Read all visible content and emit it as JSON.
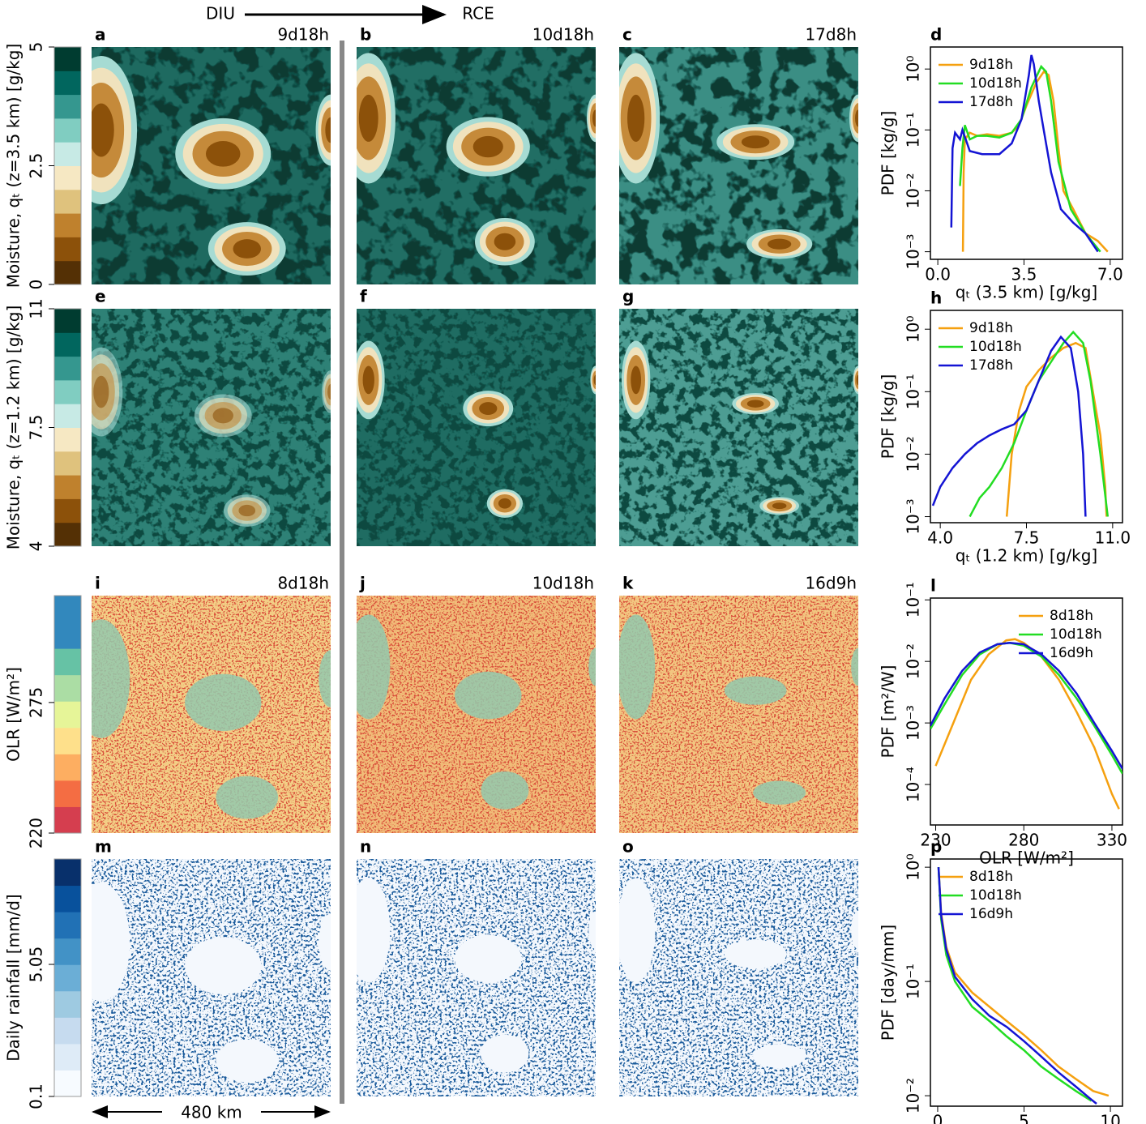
{
  "header": {
    "left": "DIU",
    "right": "RCE"
  },
  "scale_bar": "480 km",
  "rows": [
    {
      "colorbar": {
        "label": "Moisture, qₜ (z=3.5 km) [g/kg]",
        "lim": [
          0,
          5
        ],
        "ticks": [
          0,
          2.5,
          5
        ],
        "colors": [
          "#543005",
          "#8c510a",
          "#bf812d",
          "#dfc27d",
          "#f6e8c3",
          "#c7eae5",
          "#80cdc1",
          "#35978f",
          "#01665e",
          "#003c30"
        ]
      },
      "panels": [
        {
          "letter": "a",
          "time": "9d18h"
        },
        {
          "letter": "b",
          "time": "10d18h"
        },
        {
          "letter": "c",
          "time": "17d8h"
        }
      ]
    },
    {
      "colorbar": {
        "label": "Moisture, qₜ (z=1.2 km) [g/kg]",
        "lim": [
          4,
          11
        ],
        "ticks": [
          4,
          7.5,
          11
        ],
        "colors": [
          "#543005",
          "#8c510a",
          "#bf812d",
          "#dfc27d",
          "#f6e8c3",
          "#c7eae5",
          "#80cdc1",
          "#35978f",
          "#01665e",
          "#003c30"
        ]
      },
      "panels": [
        {
          "letter": "e"
        },
        {
          "letter": "f"
        },
        {
          "letter": "g"
        }
      ]
    },
    {
      "colorbar": {
        "label": "OLR [W/m²]",
        "lim": [
          220,
          320
        ],
        "ticks": [
          220,
          275
        ],
        "colors": [
          "#d53e4f",
          "#f46d43",
          "#fdae61",
          "#fee08b",
          "#e6f598",
          "#abdda4",
          "#66c2a5",
          "#3288bd",
          "#3288bd"
        ]
      },
      "panels": [
        {
          "letter": "i",
          "time": "8d18h"
        },
        {
          "letter": "j",
          "time": "10d18h"
        },
        {
          "letter": "k",
          "time": "16d9h"
        }
      ]
    },
    {
      "colorbar": {
        "label": "Daily rainfall [mm/d]",
        "lim": [
          0.1,
          9
        ],
        "ticks": [
          0.1,
          5.05
        ],
        "colors": [
          "#f7fbff",
          "#deebf7",
          "#c6dbef",
          "#9ecae1",
          "#6baed6",
          "#4292c6",
          "#2171b5",
          "#08519c",
          "#08306b"
        ]
      },
      "panels": [
        {
          "letter": "m"
        },
        {
          "letter": "n"
        },
        {
          "letter": "o"
        }
      ]
    }
  ],
  "chart_data": [
    {
      "type": "line",
      "title": "d",
      "xlabel": "qₜ (3.5 km) [g/kg]",
      "ylabel": "PDF [kg/g]",
      "log_y": true,
      "legend": "upper left",
      "xlim": [
        -0.3,
        7.5
      ],
      "ylim": [
        0.00075,
        2.3
      ],
      "xticks": [
        {
          "value": 0,
          "label": "0.0"
        },
        3.5,
        {
          "value": 7,
          "label": "7.0"
        }
      ],
      "yticks": [
        {
          "value": 0.001,
          "label": "10⁻³"
        },
        {
          "value": 0.01,
          "label": "10⁻²"
        },
        {
          "value": 0.1,
          "label": "10⁻¹"
        },
        {
          "value": 1,
          "label": "10⁰"
        }
      ],
      "series": [
        {
          "name": "9d18h",
          "color": "#f5a00f",
          "x": [
            1.02,
            1.05,
            1.1,
            1.3,
            1.6,
            2.0,
            2.5,
            3.0,
            3.3,
            3.6,
            4.0,
            4.3,
            4.5,
            4.7,
            4.9,
            5.1,
            5.5,
            6.0,
            6.5,
            6.9
          ],
          "values": [
            0.001,
            0.02,
            0.07,
            0.09,
            0.08,
            0.085,
            0.08,
            0.09,
            0.12,
            0.25,
            0.6,
            0.9,
            0.8,
            0.3,
            0.05,
            0.01,
            0.005,
            0.002,
            0.0015,
            0.001
          ]
        },
        {
          "name": "10d18h",
          "color": "#22dd22",
          "x": [
            0.9,
            1.0,
            1.1,
            1.3,
            1.6,
            2.0,
            2.5,
            3.0,
            3.4,
            3.8,
            4.2,
            4.4,
            4.6,
            4.9,
            5.4,
            6.0,
            6.6
          ],
          "values": [
            0.012,
            0.05,
            0.12,
            0.07,
            0.08,
            0.08,
            0.075,
            0.09,
            0.15,
            0.5,
            1.1,
            0.9,
            0.3,
            0.03,
            0.005,
            0.002,
            0.001
          ]
        },
        {
          "name": "17d8h",
          "color": "#1414d4",
          "x": [
            0.55,
            0.6,
            0.7,
            0.9,
            1.0,
            1.3,
            1.8,
            2.5,
            3.0,
            3.4,
            3.7,
            3.8,
            3.9,
            4.1,
            4.3,
            4.6,
            5.0,
            5.5,
            6.0,
            6.5
          ],
          "values": [
            0.0025,
            0.05,
            0.09,
            0.07,
            0.1,
            0.045,
            0.04,
            0.04,
            0.06,
            0.15,
            0.8,
            1.7,
            1.2,
            0.3,
            0.1,
            0.02,
            0.005,
            0.003,
            0.002,
            0.001
          ]
        }
      ]
    },
    {
      "type": "line",
      "title": "h",
      "xlabel": "qₜ (1.2 km) [g/kg]",
      "ylabel": "PDF [kg/g]",
      "log_y": true,
      "legend": "upper left",
      "xlim": [
        3.6,
        11.4
      ],
      "ylim": [
        0.0008,
        2.0
      ],
      "xticks": [
        {
          "value": 4,
          "label": "4.0"
        },
        7.5,
        {
          "value": 11,
          "label": "11.0"
        }
      ],
      "yticks": [
        {
          "value": 0.001,
          "label": "10⁻³"
        },
        {
          "value": 0.01,
          "label": "10⁻²"
        },
        {
          "value": 0.1,
          "label": "10⁻¹"
        },
        {
          "value": 1,
          "label": "10⁰"
        }
      ],
      "series": [
        {
          "name": "9d18h",
          "color": "#f5a00f",
          "x": [
            6.7,
            6.9,
            7.2,
            7.5,
            8.0,
            8.5,
            9.0,
            9.5,
            9.9,
            10.2,
            10.5,
            10.7,
            10.75
          ],
          "values": [
            0.001,
            0.01,
            0.05,
            0.12,
            0.22,
            0.35,
            0.5,
            0.6,
            0.5,
            0.1,
            0.02,
            0.003,
            0.001
          ]
        },
        {
          "name": "10d18h",
          "color": "#22dd22",
          "x": [
            5.2,
            5.6,
            6.0,
            6.5,
            7.0,
            7.5,
            8.0,
            8.5,
            9.0,
            9.4,
            9.8,
            10.1,
            10.5,
            10.8
          ],
          "values": [
            0.001,
            0.002,
            0.003,
            0.006,
            0.015,
            0.05,
            0.15,
            0.3,
            0.6,
            0.9,
            0.6,
            0.15,
            0.01,
            0.001
          ]
        },
        {
          "name": "17d8h",
          "color": "#1414d4",
          "x": [
            3.7,
            4.0,
            4.5,
            5.0,
            5.5,
            6.0,
            6.5,
            7.0,
            7.5,
            8.0,
            8.5,
            8.9,
            9.3,
            9.6,
            9.8,
            9.9
          ],
          "values": [
            0.0015,
            0.003,
            0.006,
            0.01,
            0.015,
            0.02,
            0.025,
            0.03,
            0.05,
            0.15,
            0.45,
            0.75,
            0.5,
            0.1,
            0.01,
            0.001
          ]
        }
      ]
    },
    {
      "type": "line",
      "title": "l",
      "xlabel": "OLR [W/m²]",
      "ylabel": "PDF [m²/W]",
      "log_y": true,
      "legend": "upper right",
      "xlim": [
        227,
        336
      ],
      "ylim": [
        2.2e-05,
        0.107
      ],
      "xticks": [
        230,
        280,
        330
      ],
      "yticks": [
        {
          "value": 0.0001,
          "label": "10⁻⁴"
        },
        {
          "value": 0.001,
          "label": "10⁻³"
        },
        {
          "value": 0.01,
          "label": "10⁻²"
        },
        {
          "value": 0.1,
          "label": "10⁻¹"
        }
      ],
      "series": [
        {
          "name": "8d18h",
          "color": "#f5a00f",
          "x": [
            230,
            240,
            250,
            260,
            270,
            275,
            280,
            290,
            300,
            310,
            320,
            330,
            334
          ],
          "values": [
            0.0002,
            0.001,
            0.005,
            0.013,
            0.022,
            0.023,
            0.02,
            0.012,
            0.005,
            0.0015,
            0.0004,
            7e-05,
            4e-05
          ]
        },
        {
          "name": "10d18h",
          "color": "#22dd22",
          "x": [
            227,
            235,
            245,
            255,
            265,
            272,
            280,
            290,
            300,
            310,
            320,
            330,
            336
          ],
          "values": [
            0.0008,
            0.002,
            0.006,
            0.013,
            0.019,
            0.02,
            0.018,
            0.012,
            0.006,
            0.0025,
            0.0009,
            0.0003,
            0.00015
          ]
        },
        {
          "name": "16d9h",
          "color": "#1414d4",
          "x": [
            227,
            235,
            245,
            255,
            265,
            272,
            280,
            290,
            300,
            310,
            320,
            330,
            336
          ],
          "values": [
            0.0009,
            0.0025,
            0.007,
            0.014,
            0.019,
            0.02,
            0.019,
            0.013,
            0.007,
            0.003,
            0.001,
            0.00035,
            0.00018
          ]
        }
      ]
    },
    {
      "type": "line",
      "title": "p",
      "xlabel": "Daily rainfall [mm/d]",
      "ylabel": "PDF [day/mm]",
      "log_y": true,
      "legend": "upper left",
      "xlim": [
        -0.42,
        10.7
      ],
      "ylim": [
        0.0081,
        1.18
      ],
      "xticks": [
        0,
        5,
        10
      ],
      "yticks": [
        {
          "value": 0.01,
          "label": "10⁻²"
        },
        {
          "value": 0.1,
          "label": "10⁻¹"
        },
        {
          "value": 1,
          "label": "10⁰"
        }
      ],
      "series": [
        {
          "name": "8d18h",
          "color": "#f5a00f",
          "x": [
            0.05,
            0.2,
            0.5,
            1.0,
            2,
            3,
            4,
            5,
            6,
            7,
            8,
            9,
            9.9
          ],
          "values": [
            1.0,
            0.4,
            0.2,
            0.12,
            0.08,
            0.06,
            0.045,
            0.034,
            0.025,
            0.018,
            0.014,
            0.011,
            0.01
          ]
        },
        {
          "name": "10d18h",
          "color": "#22dd22",
          "x": [
            0.05,
            0.2,
            0.5,
            1.0,
            2,
            3,
            4,
            5,
            6,
            7,
            8,
            8.9
          ],
          "values": [
            1.0,
            0.35,
            0.17,
            0.1,
            0.06,
            0.045,
            0.033,
            0.025,
            0.018,
            0.014,
            0.011,
            0.009
          ]
        },
        {
          "name": "16d9h",
          "color": "#1414d4",
          "x": [
            0.05,
            0.2,
            0.5,
            1.0,
            2,
            3,
            4,
            5,
            6,
            7,
            8,
            8.8,
            9.2
          ],
          "values": [
            1.0,
            0.38,
            0.19,
            0.11,
            0.07,
            0.05,
            0.04,
            0.03,
            0.022,
            0.016,
            0.012,
            0.0095,
            0.0085
          ]
        }
      ]
    }
  ]
}
